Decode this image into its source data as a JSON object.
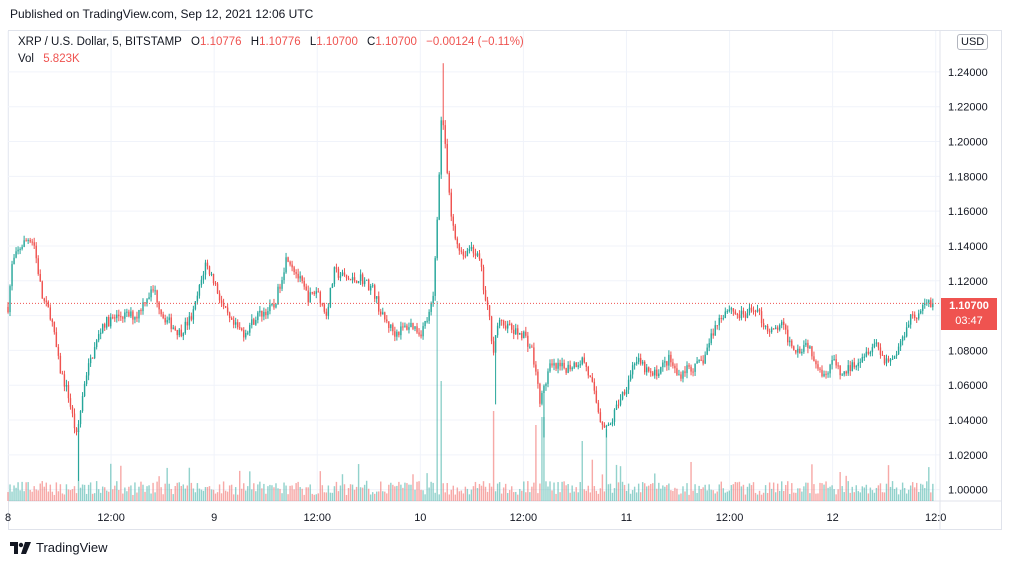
{
  "header": {
    "published_text": "Published on TradingView.com, Sep 12, 2021 12:06 UTC"
  },
  "legend": {
    "symbol": "XRP / U.S. Dollar, 5, BITSTAMP",
    "o_label": "O",
    "o_value": "1.10776",
    "h_label": "H",
    "h_value": "1.10776",
    "l_label": "L",
    "l_value": "1.10700",
    "c_label": "C",
    "c_value": "1.10700",
    "change": "−0.00124 (−0.11%)",
    "vol_label": "Vol",
    "vol_value": "5.823K"
  },
  "currency_button": "USD",
  "last_price": {
    "value": "1.10700",
    "countdown": "03:47"
  },
  "footer": {
    "brand": "TradingView"
  },
  "colors": {
    "up": "#26a69a",
    "down": "#ef5350",
    "grid": "#f0f3fa",
    "axis_text": "#131722"
  },
  "chart_data": {
    "type": "candlestick",
    "symbol": "XRP / U.S. Dollar",
    "interval": "5",
    "exchange": "BITSTAMP",
    "y_ticks": [
      "1.00000",
      "1.02000",
      "1.04000",
      "1.06000",
      "1.08000",
      "1.10000",
      "1.12000",
      "1.14000",
      "1.16000",
      "1.18000",
      "1.20000",
      "1.22000",
      "1.24000"
    ],
    "ylim": [
      0.9935,
      1.2635
    ],
    "x_ticks": [
      "8",
      "12:00",
      "9",
      "12:00",
      "10",
      "12:00",
      "11",
      "12:00",
      "12",
      "12:0"
    ],
    "x_tick_hours": [
      0,
      12,
      24,
      36,
      48,
      60,
      72,
      84,
      96,
      108
    ],
    "xlim_hours": [
      0,
      108.5
    ],
    "last_price": 1.107,
    "price_path": [
      [
        0,
        1.105
      ],
      [
        0.5,
        1.13
      ],
      [
        1.5,
        1.14
      ],
      [
        2.5,
        1.145
      ],
      [
        3,
        1.142
      ],
      [
        4,
        1.11
      ],
      [
        5,
        1.1
      ],
      [
        6,
        1.07
      ],
      [
        7,
        1.055
      ],
      [
        8,
        1.03
      ],
      [
        9,
        1.065
      ],
      [
        10,
        1.08
      ],
      [
        11,
        1.095
      ],
      [
        13,
        1.1
      ],
      [
        15,
        1.1
      ],
      [
        16,
        1.11
      ],
      [
        17,
        1.115
      ],
      [
        18,
        1.1
      ],
      [
        20,
        1.09
      ],
      [
        21.5,
        1.1
      ],
      [
        23,
        1.13
      ],
      [
        24,
        1.12
      ],
      [
        25,
        1.105
      ],
      [
        26,
        1.095
      ],
      [
        27.5,
        1.09
      ],
      [
        29,
        1.1
      ],
      [
        31,
        1.105
      ],
      [
        32.5,
        1.135
      ],
      [
        34,
        1.12
      ],
      [
        35,
        1.11
      ],
      [
        36,
        1.115
      ],
      [
        37,
        1.1
      ],
      [
        38,
        1.125
      ],
      [
        40,
        1.12
      ],
      [
        41,
        1.122
      ],
      [
        42.5,
        1.115
      ],
      [
        43.5,
        1.1
      ],
      [
        45,
        1.09
      ],
      [
        47,
        1.095
      ],
      [
        48,
        1.09
      ],
      [
        49,
        1.1
      ],
      [
        49.5,
        1.11
      ],
      [
        50,
        1.16
      ],
      [
        50.5,
        1.22
      ],
      [
        51,
        1.19
      ],
      [
        51.5,
        1.16
      ],
      [
        52,
        1.145
      ],
      [
        53,
        1.135
      ],
      [
        54,
        1.14
      ],
      [
        55,
        1.13
      ],
      [
        55.5,
        1.11
      ],
      [
        56,
        1.1
      ],
      [
        56.5,
        1.08
      ],
      [
        57,
        1.095
      ],
      [
        58,
        1.095
      ],
      [
        59,
        1.09
      ],
      [
        60,
        1.09
      ],
      [
        61,
        1.08
      ],
      [
        62,
        1.05
      ],
      [
        63,
        1.07
      ],
      [
        64,
        1.07
      ],
      [
        65,
        1.07
      ],
      [
        67,
        1.075
      ],
      [
        68,
        1.06
      ],
      [
        69,
        1.04
      ],
      [
        70,
        1.035
      ],
      [
        71,
        1.05
      ],
      [
        72,
        1.06
      ],
      [
        73,
        1.075
      ],
      [
        74,
        1.07
      ],
      [
        75,
        1.065
      ],
      [
        76,
        1.07
      ],
      [
        77,
        1.075
      ],
      [
        78,
        1.065
      ],
      [
        79,
        1.07
      ],
      [
        80,
        1.07
      ],
      [
        81,
        1.075
      ],
      [
        82,
        1.09
      ],
      [
        83,
        1.1
      ],
      [
        84,
        1.105
      ],
      [
        85,
        1.1
      ],
      [
        86,
        1.1
      ],
      [
        87,
        1.105
      ],
      [
        88,
        1.095
      ],
      [
        89,
        1.09
      ],
      [
        90,
        1.095
      ],
      [
        91,
        1.085
      ],
      [
        92,
        1.08
      ],
      [
        93,
        1.085
      ],
      [
        94,
        1.075
      ],
      [
        95,
        1.065
      ],
      [
        96,
        1.075
      ],
      [
        97,
        1.065
      ],
      [
        98,
        1.07
      ],
      [
        99,
        1.075
      ],
      [
        100,
        1.08
      ],
      [
        101,
        1.085
      ],
      [
        102,
        1.075
      ],
      [
        103,
        1.075
      ],
      [
        104,
        1.085
      ],
      [
        105,
        1.1
      ],
      [
        106,
        1.1
      ],
      [
        107,
        1.108
      ],
      [
        108,
        1.107
      ]
    ],
    "spikes": [
      {
        "hour": 8.2,
        "low": 1.005
      },
      {
        "hour": 50.6,
        "high": 1.245
      },
      {
        "hour": 56.7,
        "low": 1.049
      },
      {
        "hour": 62.4,
        "low": 1.03
      },
      {
        "hour": 69.6,
        "low": 1.03
      }
    ],
    "volume_spikes": [
      {
        "hour": 50.0,
        "rel": 1.0
      },
      {
        "hour": 50.5,
        "rel": 0.6
      },
      {
        "hour": 8.2,
        "rel": 0.35
      },
      {
        "hour": 56.5,
        "rel": 0.45
      },
      {
        "hour": 61.5,
        "rel": 0.38
      },
      {
        "hour": 62.3,
        "rel": 0.42
      },
      {
        "hour": 66.8,
        "rel": 0.3
      },
      {
        "hour": 69.6,
        "rel": 0.36
      }
    ]
  }
}
